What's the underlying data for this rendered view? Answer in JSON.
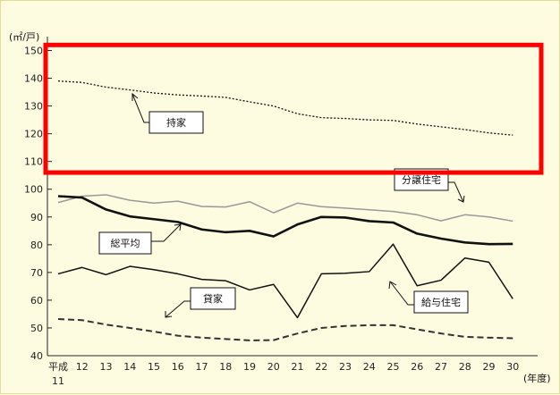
{
  "chart_data": {
    "type": "line",
    "unit_label": "(㎡/戸)",
    "x_axis_unit": "(年度)",
    "categories": [
      "平成\n11",
      "12",
      "13",
      "14",
      "15",
      "16",
      "17",
      "18",
      "19",
      "20",
      "21",
      "22",
      "23",
      "24",
      "25",
      "26",
      "27",
      "28",
      "29",
      "30"
    ],
    "ylim": [
      40,
      155
    ],
    "yticks": [
      40,
      50,
      60,
      70,
      80,
      90,
      100,
      110,
      120,
      130,
      140,
      150
    ],
    "grid": false,
    "series": [
      {
        "name": "持家",
        "style": "dotted",
        "color": "#111111",
        "values": [
          139.0,
          138.5,
          136.8,
          135.8,
          134.7,
          134.0,
          133.6,
          133.1,
          131.5,
          130.0,
          127.2,
          125.8,
          125.5,
          125.0,
          124.8,
          123.5,
          122.5,
          121.5,
          120.3,
          119.5
        ]
      },
      {
        "name": "分譲住宅",
        "style": "solid",
        "color": "#999999",
        "values": [
          95.2,
          97.5,
          98.0,
          96.0,
          95.0,
          95.7,
          93.8,
          93.6,
          95.5,
          91.5,
          95.0,
          93.7,
          93.2,
          92.6,
          92.0,
          90.8,
          88.6,
          90.8,
          90.0,
          88.5
        ]
      },
      {
        "name": "総平均",
        "style": "thick",
        "color": "#111111",
        "values": [
          97.5,
          97.0,
          92.7,
          90.2,
          89.2,
          88.2,
          85.5,
          84.5,
          85.0,
          83.0,
          87.3,
          90.0,
          89.8,
          88.5,
          88.0,
          84.0,
          82.2,
          80.8,
          80.2,
          80.3
        ]
      },
      {
        "name": "給与住宅",
        "style": "solid",
        "color": "#111111",
        "values": [
          69.5,
          71.8,
          69.2,
          72.2,
          71.0,
          69.5,
          67.5,
          67.0,
          63.7,
          65.7,
          53.7,
          69.5,
          69.7,
          70.3,
          80.2,
          65.2,
          67.2,
          75.2,
          73.7,
          60.5
        ]
      },
      {
        "name": "貸家",
        "style": "dashed",
        "color": "#333333",
        "values": [
          53.2,
          52.8,
          51.2,
          50.0,
          48.7,
          47.2,
          46.5,
          46.0,
          45.5,
          45.6,
          48.0,
          50.0,
          50.7,
          51.0,
          51.0,
          49.5,
          48.0,
          46.8,
          46.5,
          46.3
        ]
      }
    ]
  },
  "annotations": {
    "mochiie": "持家",
    "bunjo": "分譲住宅",
    "soheikin": "総平均",
    "kashiya": "貸家",
    "kyuyo": "給与住宅"
  },
  "highlight": {
    "color": "#ff0000",
    "from": 106,
    "to": 152
  }
}
